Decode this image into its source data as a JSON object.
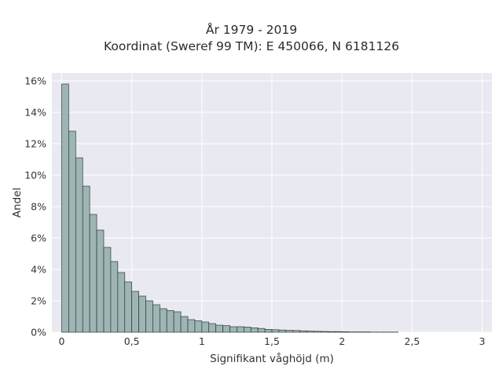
{
  "chart_data": {
    "type": "bar",
    "title": "År 1979 - 2019",
    "subtitle": "Koordinat (Sweref 99 TM): E 450066, N 6181126",
    "xlabel": "Signifikant våghöjd (m)",
    "ylabel": "Andel",
    "xlim": [
      -0.07,
      3.07
    ],
    "ylim": [
      0,
      0.165
    ],
    "x_ticks": [
      0,
      0.5,
      1,
      1.5,
      2,
      2.5,
      3
    ],
    "x_tick_labels": [
      "0",
      "0,5",
      "1",
      "1,5",
      "2",
      "2,5",
      "3"
    ],
    "y_ticks": [
      0,
      0.02,
      0.04,
      0.06,
      0.08,
      0.1,
      0.12,
      0.14,
      0.16
    ],
    "y_tick_labels": [
      "0%",
      "2%",
      "4%",
      "6%",
      "8%",
      "10%",
      "12%",
      "14%",
      "16%"
    ],
    "grid": true,
    "bin_start": 0,
    "bin_width": 0.05,
    "values": [
      0.158,
      0.128,
      0.111,
      0.093,
      0.075,
      0.065,
      0.054,
      0.045,
      0.038,
      0.032,
      0.026,
      0.023,
      0.02,
      0.0175,
      0.015,
      0.0138,
      0.013,
      0.01,
      0.008,
      0.0073,
      0.0065,
      0.0055,
      0.0045,
      0.0042,
      0.0035,
      0.0035,
      0.0033,
      0.0028,
      0.0024,
      0.0018,
      0.0016,
      0.0014,
      0.0012,
      0.0011,
      0.0009,
      0.0007,
      0.0006,
      0.0005,
      0.0004,
      0.0004,
      0.0003,
      0.0002,
      0.0002,
      0.0002,
      0.0001,
      0.0001,
      0.0001,
      0.0001
    ],
    "colors": {
      "bar_fill": "#9db5b3",
      "bar_edge": "#2f3a39",
      "plot_bg": "#e9e9f1",
      "grid": "#ffffff"
    }
  }
}
